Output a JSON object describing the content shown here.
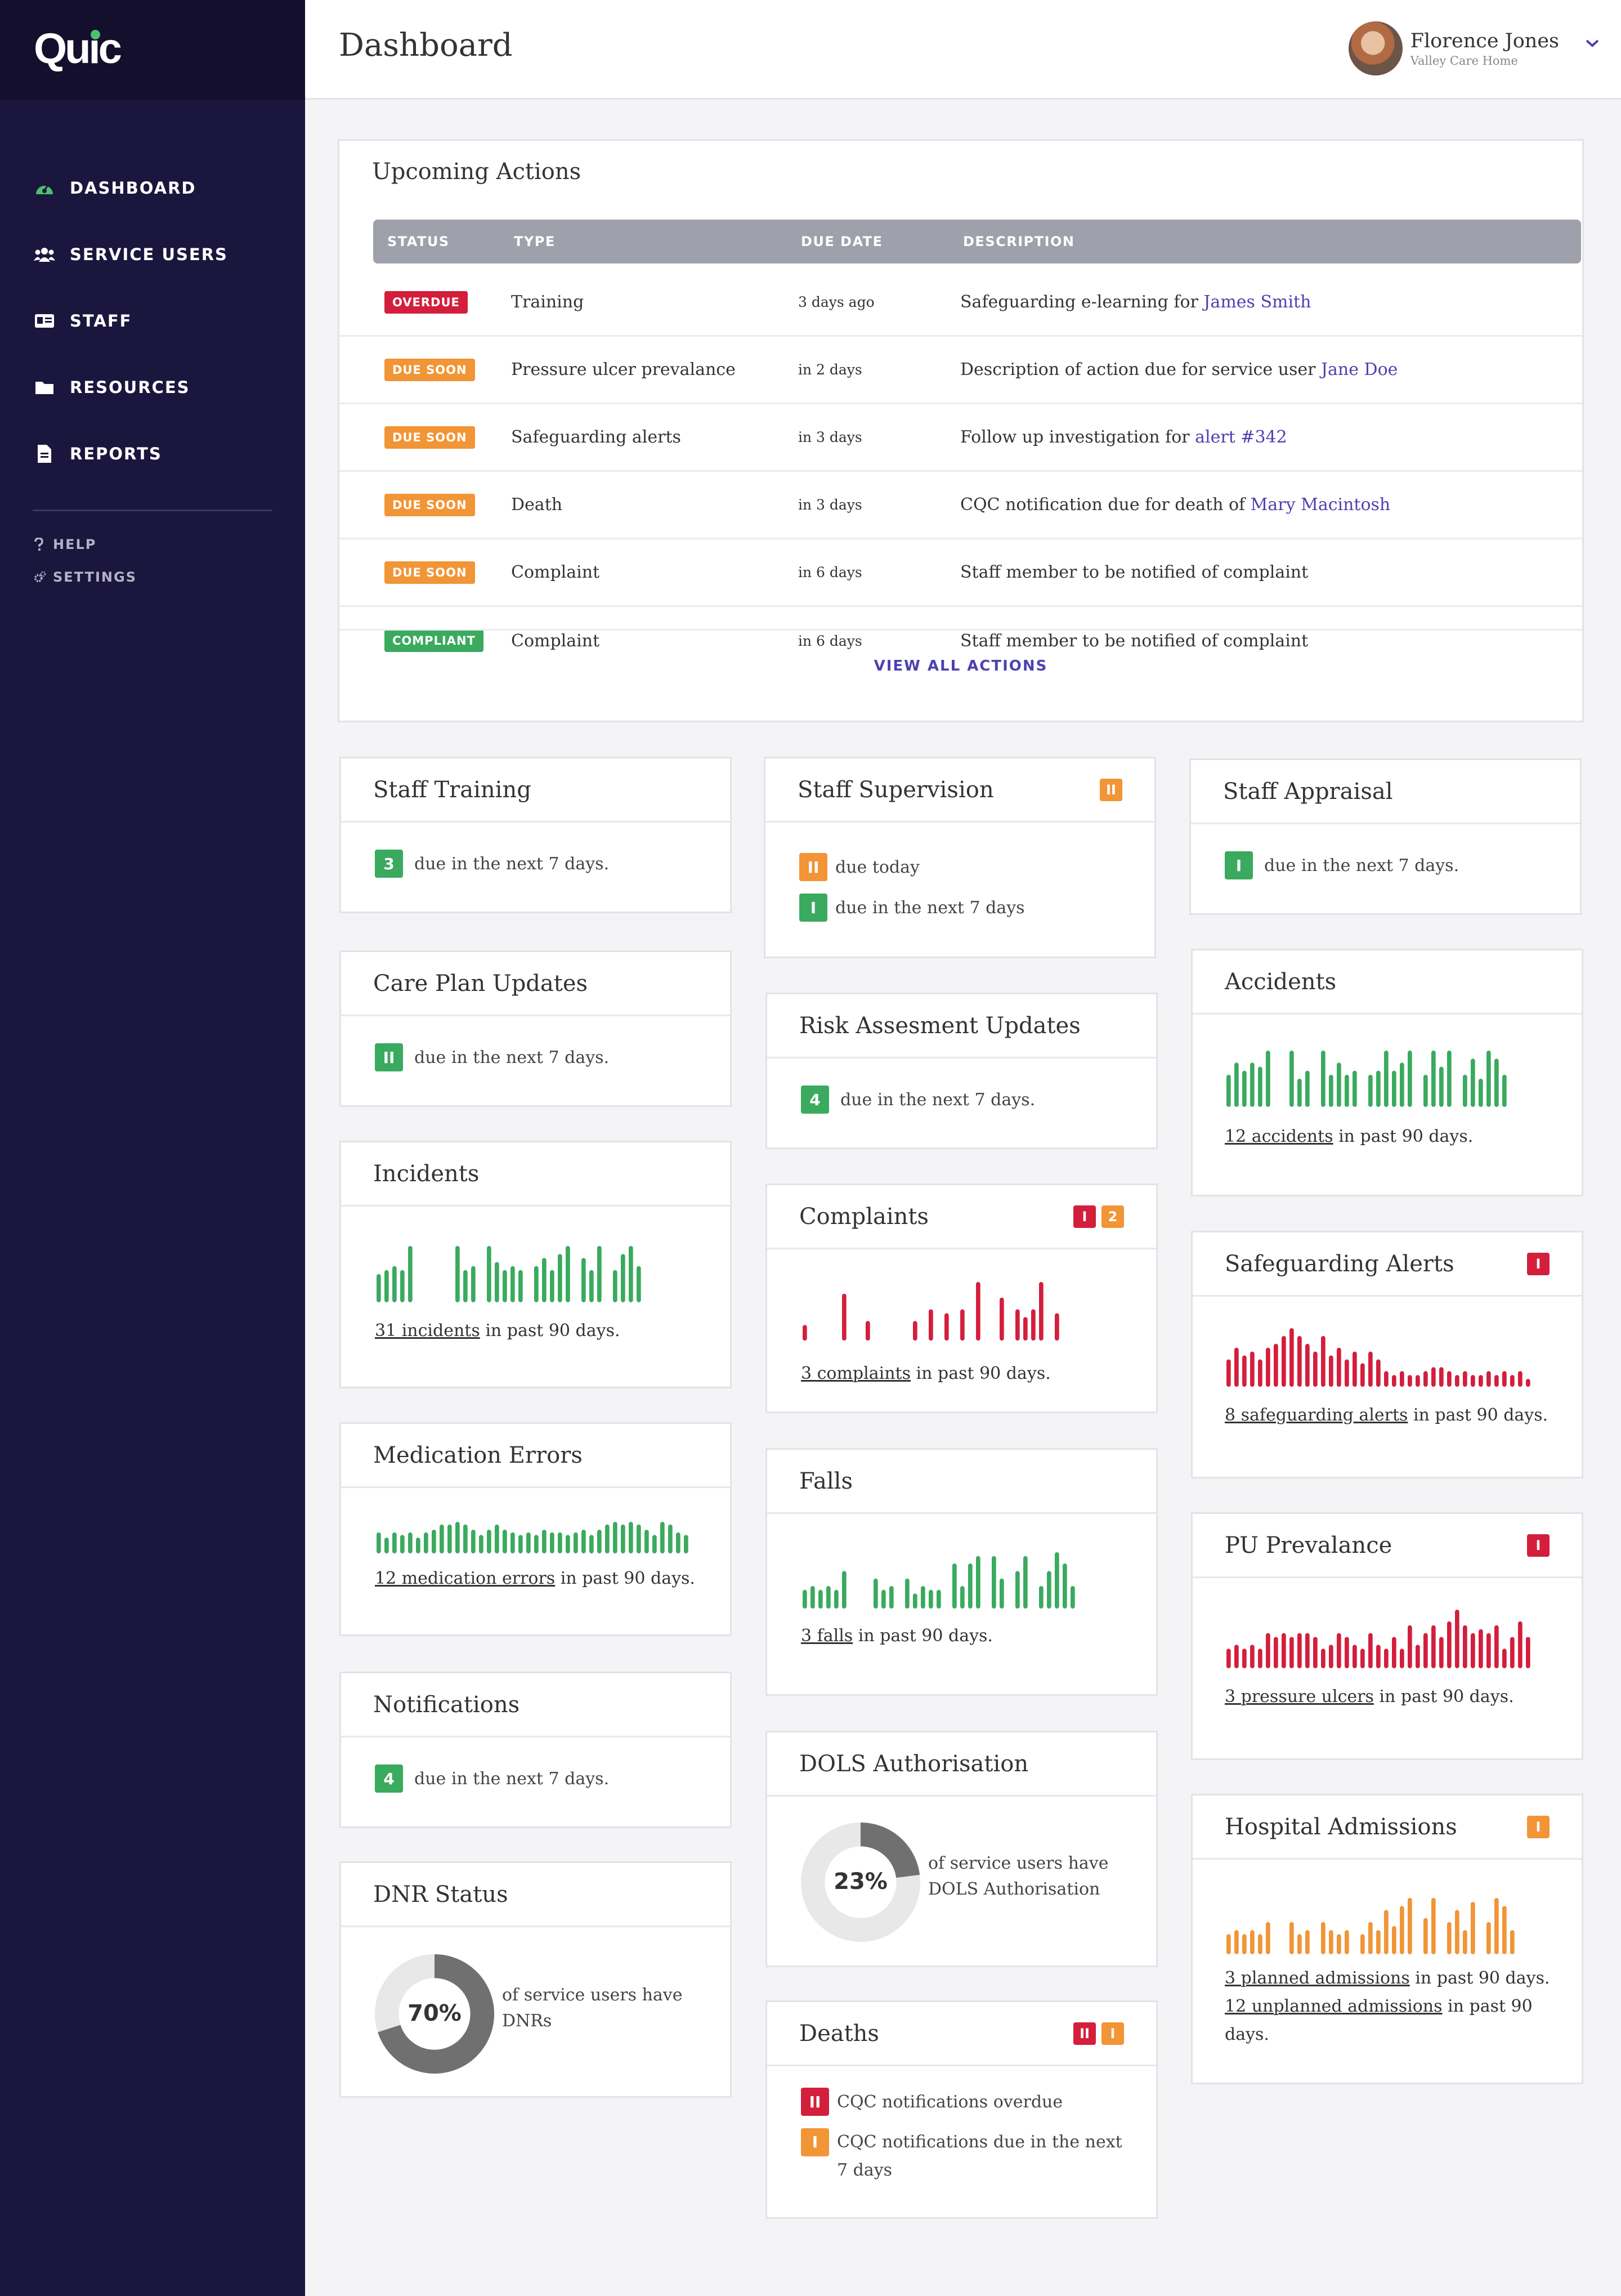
{
  "app": {
    "logo": "Quic"
  },
  "sidebar": {
    "nav": [
      {
        "label": "DASHBOARD",
        "icon": "speedometer-icon",
        "color": "#4cc06f"
      },
      {
        "label": "SERVICE USERS",
        "icon": "users-icon"
      },
      {
        "label": "STAFF",
        "icon": "id-card-icon"
      },
      {
        "label": "RESOURCES",
        "icon": "folder-icon"
      },
      {
        "label": "REPORTS",
        "icon": "document-icon"
      }
    ],
    "secondary": [
      {
        "label": "HELP",
        "icon": "question-icon"
      },
      {
        "label": "SETTINGS",
        "icon": "gears-icon"
      }
    ]
  },
  "header": {
    "title": "Dashboard",
    "user": {
      "name": "Florence Jones",
      "organisation": "Valley Care Home"
    }
  },
  "upcoming": {
    "title": "Upcoming Actions",
    "columns": [
      "STATUS",
      "TYPE",
      "DUE DATE",
      "DESCRIPTION"
    ],
    "rows": [
      {
        "status": "OVERDUE",
        "status_color": "#d31f3c",
        "type": "Training",
        "due": "3 days ago",
        "desc": "Safeguarding e-learning for",
        "link": "James Smith"
      },
      {
        "status": "DUE SOON",
        "status_color": "#f19536",
        "type": "Pressure ulcer prevalance",
        "due": "in 2 days",
        "desc": "Description of action due for service user",
        "link": "Jane Doe"
      },
      {
        "status": "DUE SOON",
        "status_color": "#f19536",
        "type": "Safeguarding alerts",
        "due": "in 3 days",
        "desc": "Follow up investigation for",
        "link": "alert #342"
      },
      {
        "status": "DUE SOON",
        "status_color": "#f19536",
        "type": "Death",
        "due": "in 3 days",
        "desc": "CQC notification due for death of",
        "link": "Mary Macintosh"
      },
      {
        "status": "DUE SOON",
        "status_color": "#f19536",
        "type": "Complaint",
        "due": "in 6 days",
        "desc": "Staff member to be notified of complaint",
        "link": ""
      },
      {
        "status": "COMPLIANT",
        "status_color": "#3aaa5e",
        "type": "Complaint",
        "due": "in 6 days",
        "desc": "Staff member to be notified of complaint",
        "link": ""
      }
    ],
    "view_all": "VIEW ALL ACTIONS"
  },
  "cards": {
    "staff_training": {
      "title": "Staff Training",
      "count": "3",
      "text": "due in the next 7 days."
    },
    "care_plan": {
      "title": "Care Plan Updates",
      "count": "II",
      "text": "due in the next 7 days."
    },
    "incidents": {
      "title": "Incidents",
      "link": "31 incidents",
      "suffix": "in past 90 days.",
      "spark_color": "#3aaa5e",
      "values": [
        7,
        8,
        9,
        8,
        14,
        0,
        0,
        0,
        0,
        0,
        14,
        8,
        9,
        0,
        14,
        10,
        8,
        9,
        8,
        0,
        9,
        11,
        8,
        12,
        14,
        0,
        11,
        8,
        14,
        0,
        8,
        12,
        14,
        9,
        0,
        0,
        0,
        0,
        0,
        0
      ]
    },
    "medication_errors": {
      "title": "Medication Errors",
      "link": "12 medication errors",
      "suffix": "in past 90 days.",
      "spark_color": "#3aaa5e",
      "values": [
        8,
        6,
        8,
        7,
        8,
        6,
        8,
        9,
        11,
        11,
        12,
        11,
        9,
        7,
        9,
        11,
        9,
        8,
        7,
        8,
        7,
        9,
        8,
        8,
        7,
        8,
        9,
        7,
        9,
        11,
        12,
        11,
        12,
        11,
        9,
        7,
        12,
        11,
        8,
        7
      ]
    },
    "notifications": {
      "title": "Notifications",
      "count": "4",
      "text": "due in the next 7 days."
    },
    "dnr": {
      "title": "DNR Status",
      "percent": "70%",
      "value": 0.7,
      "text": "of service users have DNRs"
    },
    "staff_supervision": {
      "title": "Staff Supervision",
      "badge": "II",
      "lines": [
        {
          "count": "II",
          "color": "#f19536",
          "text": "due today"
        },
        {
          "count": "I",
          "color": "#3aaa5e",
          "text": "due in the next 7 days"
        }
      ]
    },
    "risk_assessment": {
      "title": "Risk Assesment Updates",
      "count": "4",
      "text": "due in the next 7 days."
    },
    "complaints": {
      "title": "Complaints",
      "badges": [
        {
          "label": "I",
          "color": "#d31f3c"
        },
        {
          "label": "2",
          "color": "#f19536"
        }
      ],
      "link": "3 complaints",
      "suffix": "in past 90 days.",
      "spark_color": "#d31f3c",
      "values": [
        4,
        0,
        0,
        0,
        0,
        12,
        0,
        0,
        5,
        0,
        0,
        0,
        0,
        0,
        5,
        0,
        8,
        0,
        7,
        0,
        8,
        0,
        15,
        0,
        0,
        11,
        0,
        8,
        6,
        8,
        15,
        0,
        7,
        0,
        0,
        0,
        0,
        0,
        0,
        0
      ]
    },
    "falls": {
      "title": "Falls",
      "link": "3 falls",
      "suffix": "in past 90 days.",
      "spark_color": "#3aaa5e",
      "values": [
        5,
        6,
        5,
        6,
        5,
        10,
        0,
        0,
        0,
        8,
        5,
        6,
        0,
        8,
        4,
        6,
        5,
        5,
        0,
        12,
        6,
        12,
        14,
        0,
        14,
        8,
        0,
        10,
        14,
        0,
        6,
        10,
        15,
        12,
        6,
        0,
        0,
        0,
        0,
        0
      ]
    },
    "dols": {
      "title": "DOLS Authorisation",
      "percent": "23%",
      "value": 0.23,
      "text": "of service users have DOLS Authorisation"
    },
    "deaths": {
      "title": "Deaths",
      "badges": [
        {
          "label": "II",
          "color": "#d31f3c"
        },
        {
          "label": "I",
          "color": "#f19536"
        }
      ],
      "lines": [
        {
          "count": "II",
          "color": "#d31f3c",
          "text": "CQC notifications overdue"
        },
        {
          "count": "I",
          "color": "#f19536",
          "text": "CQC notifications due in the next 7 days"
        }
      ]
    },
    "staff_appraisal": {
      "title": "Staff Appraisal",
      "count": "I",
      "text": "due in the next 7 days."
    },
    "accidents": {
      "title": "Accidents",
      "link": "12 accidents",
      "suffix": "in past 90 days.",
      "spark_color": "#3aaa5e",
      "values": [
        8,
        11,
        9,
        11,
        10,
        14,
        0,
        0,
        14,
        7,
        9,
        0,
        14,
        8,
        11,
        8,
        9,
        0,
        8,
        9,
        14,
        9,
        11,
        14,
        0,
        8,
        14,
        10,
        14,
        0,
        8,
        12,
        7,
        14,
        12,
        8,
        0,
        0,
        0,
        0
      ]
    },
    "safeguarding": {
      "title": "Safeguarding Alerts",
      "badge": "I",
      "link": "8 safeguarding alerts",
      "suffix": "in past 90 days.",
      "spark_color": "#d31f3c",
      "values": [
        7,
        10,
        8,
        9,
        7,
        10,
        11,
        13,
        15,
        13,
        11,
        9,
        13,
        8,
        10,
        7,
        9,
        6,
        9,
        7,
        4,
        3,
        4,
        3,
        3,
        4,
        5,
        5,
        4,
        3,
        4,
        3,
        3,
        4,
        3,
        4,
        3,
        4,
        2,
        0
      ]
    },
    "pu_prevalance": {
      "title": "PU Prevalance",
      "badge": "I",
      "link": "3 pressure ulcers",
      "suffix": "in past 90 days.",
      "spark_color": "#d31f3c",
      "values": [
        5,
        6,
        5,
        6,
        5,
        9,
        8,
        9,
        8,
        9,
        9,
        8,
        5,
        6,
        9,
        8,
        6,
        5,
        9,
        6,
        5,
        8,
        5,
        11,
        6,
        9,
        11,
        8,
        12,
        15,
        11,
        9,
        10,
        9,
        11,
        5,
        8,
        12,
        8,
        0
      ]
    },
    "hospital": {
      "title": "Hospital Admissions",
      "badge": "I",
      "link": "3 planned admissions",
      "suffix": "in past 90 days.",
      "link2": "12 unplanned admissions",
      "suffix2": "in past 90 days.",
      "spark_color": "#f19536",
      "values": [
        5,
        6,
        5,
        6,
        5,
        8,
        0,
        0,
        8,
        5,
        6,
        0,
        8,
        6,
        5,
        6,
        0,
        5,
        8,
        6,
        11,
        7,
        12,
        14,
        0,
        9,
        14,
        0,
        8,
        11,
        6,
        13,
        0,
        8,
        14,
        12,
        6,
        0,
        0,
        0
      ]
    }
  }
}
